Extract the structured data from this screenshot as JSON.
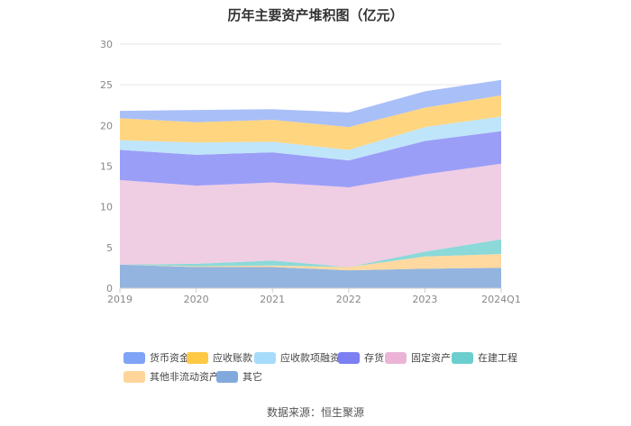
{
  "title": "历年主要资产堆积图（亿元）",
  "source": "数据来源：恒生聚源",
  "chart_data": {
    "type": "area",
    "stacked": true,
    "categories": [
      "2019",
      "2020",
      "2021",
      "2022",
      "2023",
      "2024Q1"
    ],
    "ylim": [
      0,
      30
    ],
    "yticks": [
      "0",
      "5",
      "10",
      "15",
      "20",
      "25",
      "30"
    ],
    "grid": true,
    "legend_position": "bottom",
    "series": [
      {
        "name": "其它",
        "color": "#93b4df",
        "values": [
          2.9,
          2.6,
          2.6,
          2.2,
          2.4,
          2.5
        ]
      },
      {
        "name": "其他非流动资产",
        "color": "#ffd9a0",
        "values": [
          0.0,
          0.1,
          0.2,
          0.4,
          1.5,
          1.7
        ]
      },
      {
        "name": "在建工程",
        "color": "#8bd9d9",
        "values": [
          0.0,
          0.3,
          0.6,
          0.0,
          0.6,
          1.8
        ]
      },
      {
        "name": "固定资产",
        "color": "#efcde3",
        "values": [
          10.4,
          9.6,
          9.6,
          9.8,
          9.5,
          9.3
        ]
      },
      {
        "name": "存货",
        "color": "#9b9ef7",
        "values": [
          3.7,
          3.8,
          3.7,
          3.3,
          4.1,
          4.0
        ]
      },
      {
        "name": "应收款项融资",
        "color": "#bfe5fb",
        "values": [
          1.2,
          1.5,
          1.3,
          1.3,
          1.7,
          1.8
        ]
      },
      {
        "name": "应收账款",
        "color": "#ffd580",
        "values": [
          2.7,
          2.5,
          2.7,
          2.8,
          2.4,
          2.6
        ]
      },
      {
        "name": "货币资金",
        "color": "#a9bff8",
        "values": [
          0.9,
          1.5,
          1.3,
          1.8,
          2.0,
          1.9
        ]
      }
    ]
  },
  "legend": [
    {
      "label": "货币资金",
      "color": "#7fa3f7"
    },
    {
      "label": "应收账款",
      "color": "#ffc845"
    },
    {
      "label": "应收款项融资",
      "color": "#a6dcfb"
    },
    {
      "label": "存货",
      "color": "#7b7ff2"
    },
    {
      "label": "固定资产",
      "color": "#ebb4d7"
    },
    {
      "label": "在建工程",
      "color": "#6ccfcf"
    },
    {
      "label": "其他非流动资产",
      "color": "#ffd59a"
    },
    {
      "label": "其它",
      "color": "#82a9dc"
    }
  ]
}
